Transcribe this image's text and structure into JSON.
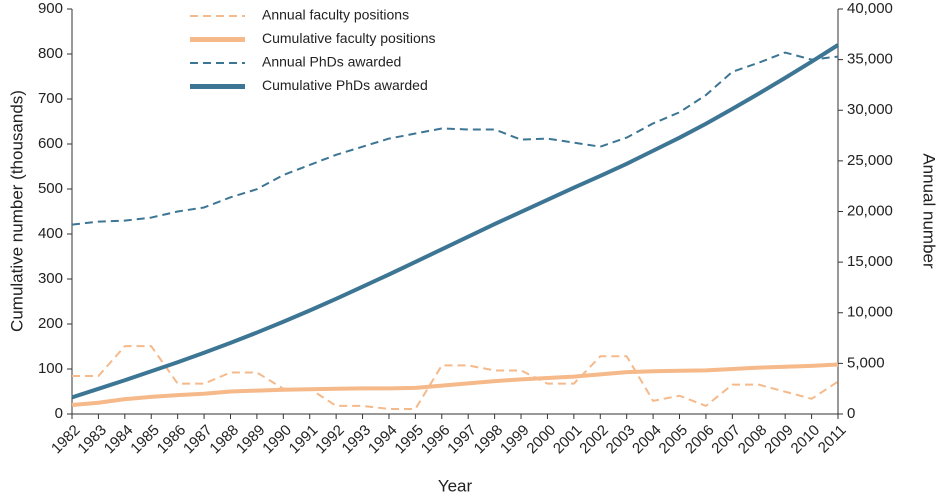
{
  "chart_data": {
    "type": "line",
    "x_label": "Year",
    "y_label": "Cumulative number (thousands)",
    "y2_label": "Annual number",
    "x": [
      1982,
      1983,
      1984,
      1985,
      1986,
      1987,
      1988,
      1989,
      1990,
      1991,
      1992,
      1993,
      1994,
      1995,
      1996,
      1997,
      1998,
      1999,
      2000,
      2001,
      2002,
      2003,
      2004,
      2005,
      2006,
      2007,
      2008,
      2009,
      2010,
      2011
    ],
    "xlim": [
      1982,
      2011
    ],
    "ylim": [
      0,
      900
    ],
    "yticks": [
      0,
      100,
      200,
      300,
      400,
      500,
      600,
      700,
      800,
      900
    ],
    "y2lim": [
      0,
      40000
    ],
    "y2ticks": [
      0,
      {
        "value": 5000,
        "label": "5,000"
      },
      {
        "value": 10000,
        "label": "10,000"
      },
      {
        "value": 15000,
        "label": "15,000"
      },
      {
        "value": 20000,
        "label": "20,000"
      },
      {
        "value": 25000,
        "label": "25,000"
      },
      {
        "value": 30000,
        "label": "30,000"
      },
      {
        "value": 35000,
        "label": "35,000"
      },
      {
        "value": 40000,
        "label": "40,000"
      }
    ],
    "series": [
      {
        "name": "Annual faculty positions",
        "color": "#f5b98a",
        "axis": "y2",
        "dashed": true,
        "values": [
          3750,
          3750,
          6700,
          6700,
          3000,
          3000,
          4100,
          4100,
          2500,
          2500,
          800,
          800,
          500,
          500,
          4800,
          4800,
          4300,
          4300,
          3000,
          3000,
          5700,
          5700,
          1300,
          1800,
          800,
          2900,
          2900,
          2200,
          1500,
          3200
        ]
      },
      {
        "name": "Cumulative faculty positions",
        "color": "#f5b98a",
        "axis": "y",
        "dashed": false,
        "values": [
          20,
          25,
          33,
          38,
          42,
          45,
          50,
          52,
          54,
          55,
          56,
          57,
          57,
          58,
          63,
          68,
          73,
          77,
          80,
          83,
          88,
          93,
          95,
          96,
          97,
          100,
          103,
          105,
          107,
          110
        ]
      },
      {
        "name": "Annual PhDs awarded",
        "color": "#3d7694",
        "axis": "y2",
        "dashed": true,
        "values": [
          18700,
          19000,
          19100,
          19400,
          20000,
          20400,
          21400,
          22200,
          23600,
          24600,
          25600,
          26400,
          27200,
          27700,
          28200,
          28100,
          28100,
          27100,
          27200,
          26800,
          26400,
          27300,
          28700,
          29800,
          31500,
          33800,
          34700,
          35700,
          35000,
          35300
        ]
      },
      {
        "name": "Cumulative PhDs awarded",
        "color": "#3d7694",
        "axis": "y",
        "dashed": false,
        "values": [
          37,
          56,
          75,
          95,
          115,
          136,
          158,
          181,
          205,
          230,
          256,
          283,
          310,
          338,
          366,
          394,
          422,
          449,
          476,
          503,
          529,
          556,
          585,
          614,
          645,
          678,
          712,
          747,
          783,
          820
        ]
      }
    ]
  }
}
